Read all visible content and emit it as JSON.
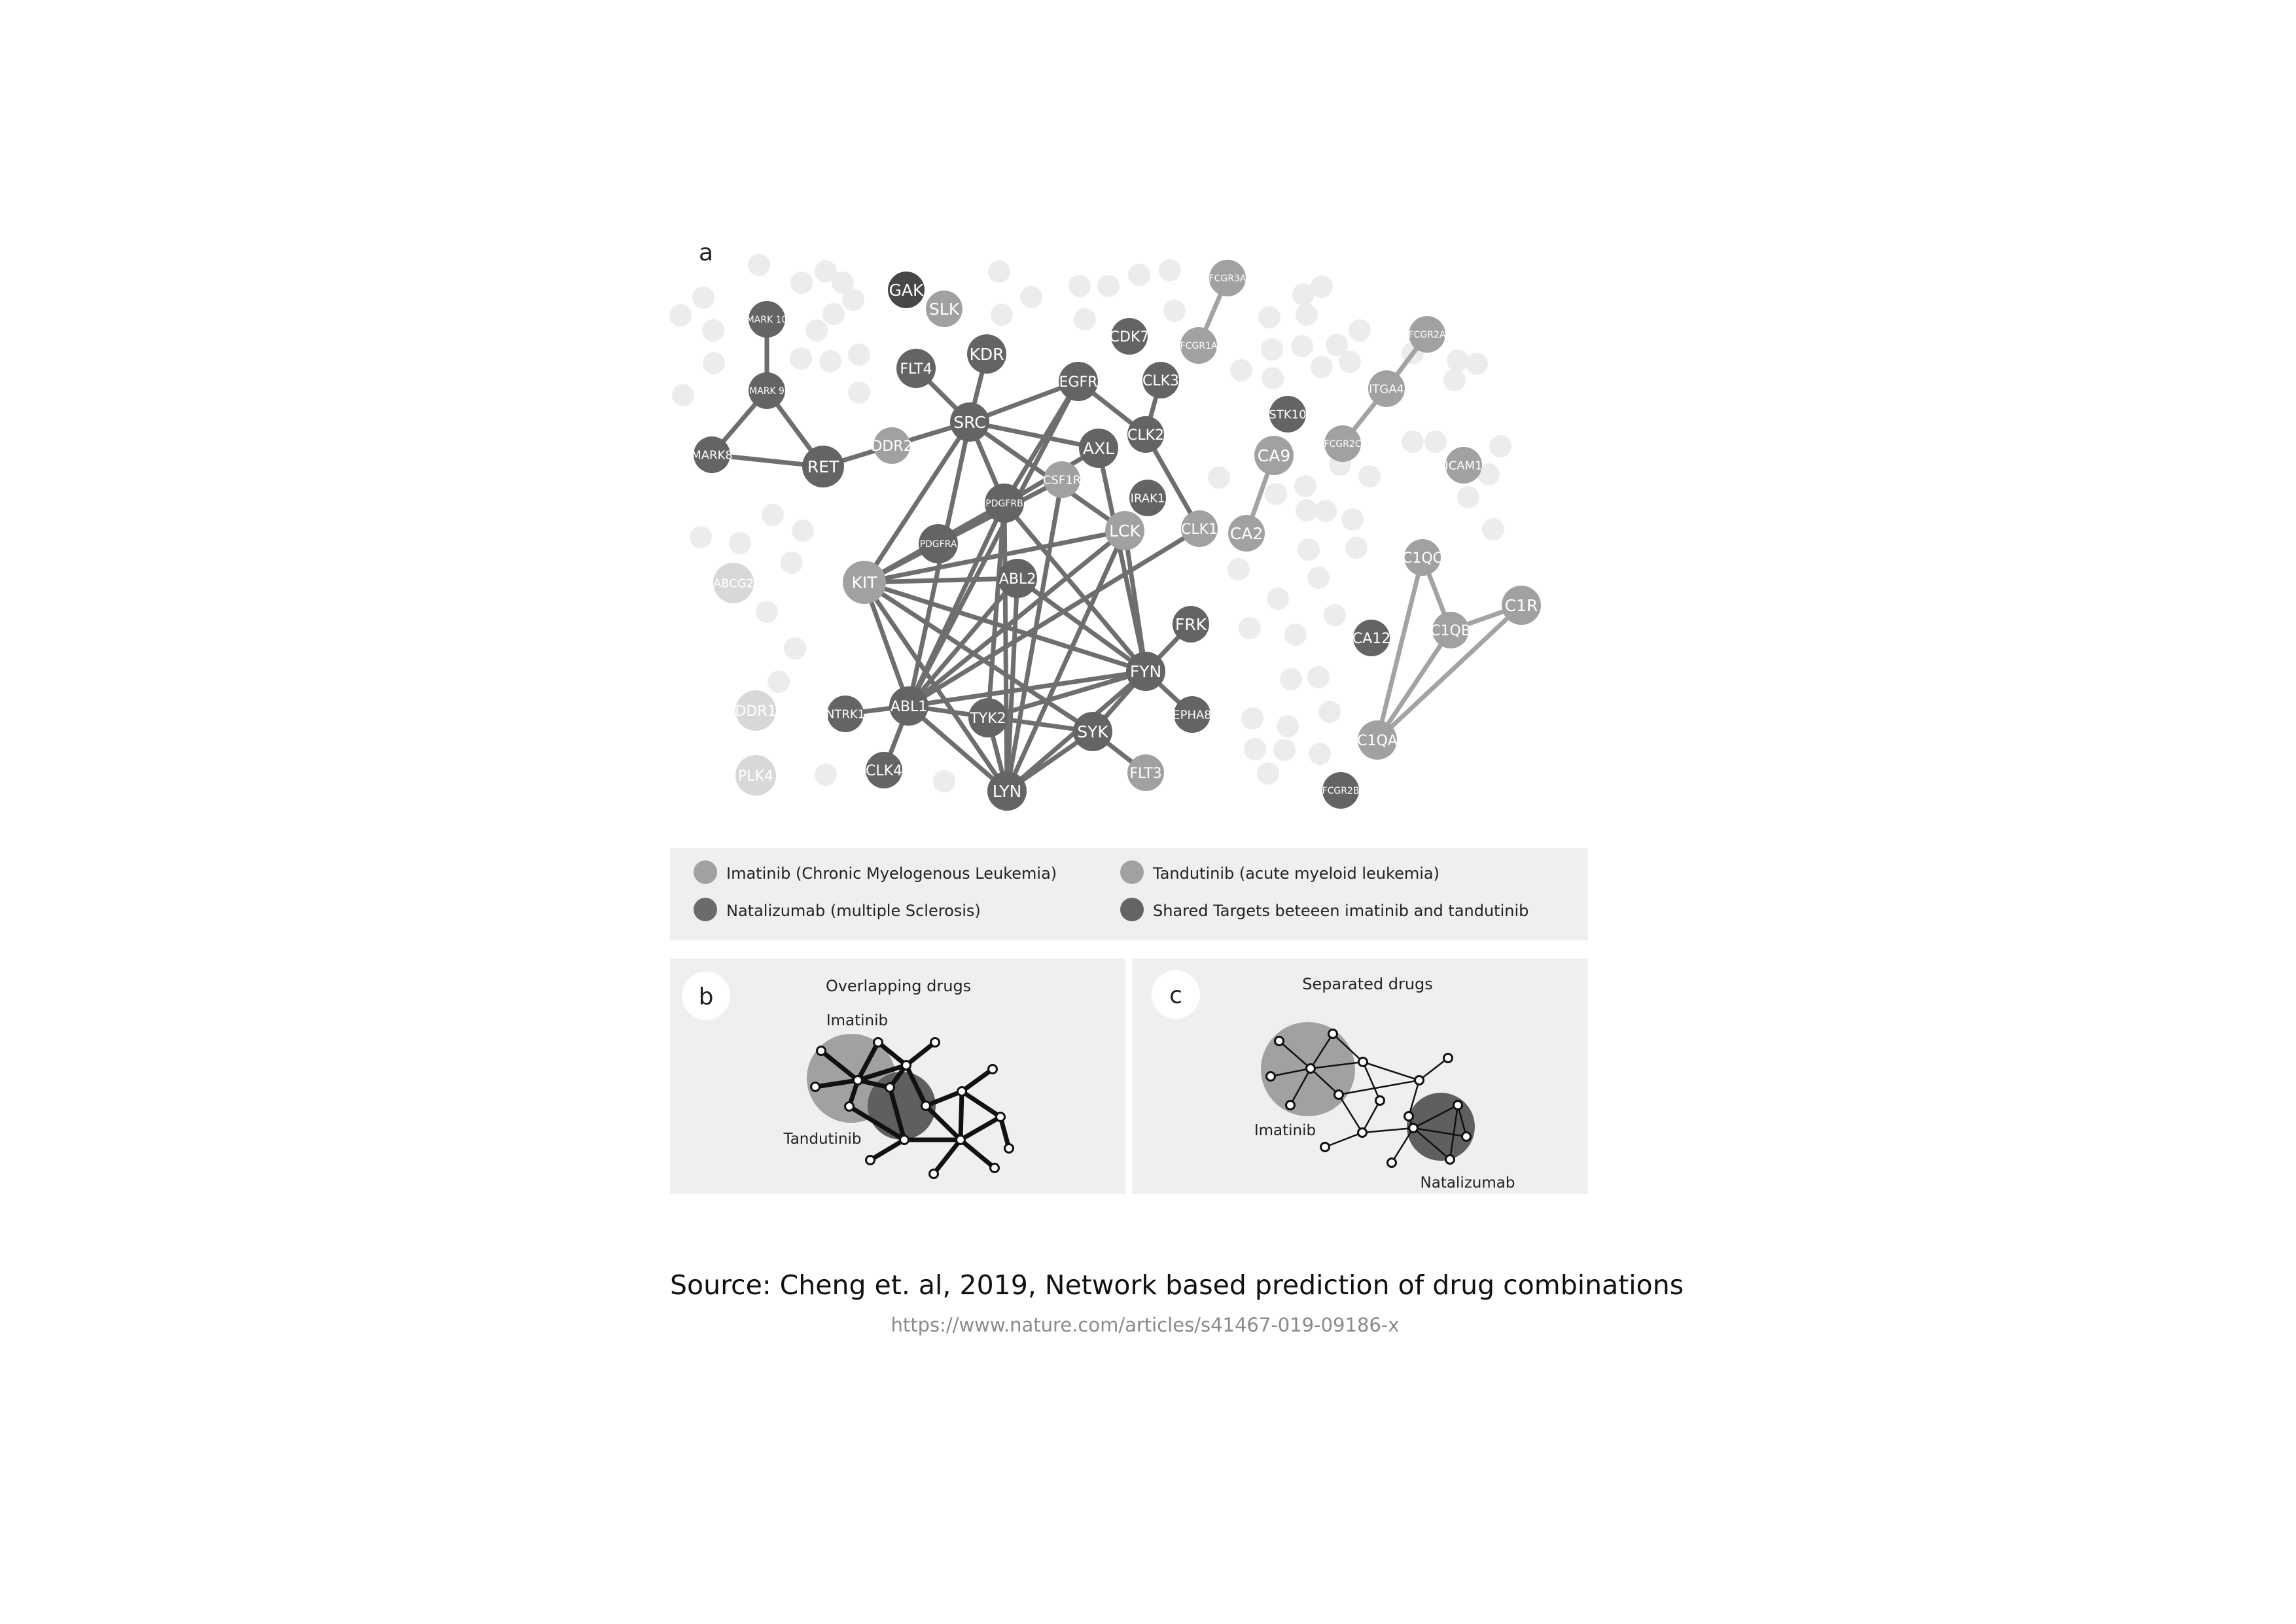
{
  "panel_a": {
    "letter": "a",
    "colors": {
      "imatinib": "#a1a1a1",
      "tandutinib": "#a1a1a1",
      "natalizumab": "#6b6b6b",
      "shared": "#646464",
      "background_node": "#ececec",
      "unassigned_node": "#d8d8d8",
      "edge": "#6e6e6e",
      "edge_light": "#a3a3a3"
    },
    "nodes": [
      {
        "id": "GAK",
        "label": "GAK",
        "group": "dark"
      },
      {
        "id": "SLK",
        "label": "SLK",
        "group": "mid"
      },
      {
        "id": "MARK10",
        "label": "MARK 10",
        "group": "shared"
      },
      {
        "id": "MARK9",
        "label": "MARK 9",
        "group": "shared"
      },
      {
        "id": "MARK8",
        "label": "MARK8",
        "group": "shared"
      },
      {
        "id": "RET",
        "label": "RET",
        "group": "shared"
      },
      {
        "id": "DDR2",
        "label": "DDR2",
        "group": "mid"
      },
      {
        "id": "FLT4",
        "label": "FLT4",
        "group": "shared"
      },
      {
        "id": "KDR",
        "label": "KDR",
        "group": "shared"
      },
      {
        "id": "SRC",
        "label": "SRC",
        "group": "shared"
      },
      {
        "id": "EGFR",
        "label": "EGFR",
        "group": "shared"
      },
      {
        "id": "CDK7",
        "label": "CDK7",
        "group": "shared"
      },
      {
        "id": "CLK3",
        "label": "CLK3",
        "group": "shared"
      },
      {
        "id": "CLK2",
        "label": "CLK2",
        "group": "shared"
      },
      {
        "id": "AXL",
        "label": "AXL",
        "group": "shared"
      },
      {
        "id": "CSF1R",
        "label": "CSF1R",
        "group": "mid"
      },
      {
        "id": "IRAK1",
        "label": "IRAK1",
        "group": "shared"
      },
      {
        "id": "PDGFRB",
        "label": "PDGFRB",
        "group": "shared"
      },
      {
        "id": "PDGFRA",
        "label": "PDGFRA",
        "group": "shared"
      },
      {
        "id": "LCK",
        "label": "LCK",
        "group": "mid"
      },
      {
        "id": "CLK1",
        "label": "CLK1",
        "group": "mid"
      },
      {
        "id": "KIT",
        "label": "KIT",
        "group": "mid"
      },
      {
        "id": "ABL2",
        "label": "ABL2",
        "group": "shared"
      },
      {
        "id": "FRK",
        "label": "FRK",
        "group": "shared"
      },
      {
        "id": "FYN",
        "label": "FYN",
        "group": "shared"
      },
      {
        "id": "EPHA8",
        "label": "EPHA8",
        "group": "shared"
      },
      {
        "id": "NTRK1",
        "label": "NTRK1",
        "group": "shared"
      },
      {
        "id": "ABL1",
        "label": "ABL1",
        "group": "shared"
      },
      {
        "id": "TYK2",
        "label": "TYK2",
        "group": "shared"
      },
      {
        "id": "SYK",
        "label": "SYK",
        "group": "shared"
      },
      {
        "id": "CLK4",
        "label": "CLK4",
        "group": "shared"
      },
      {
        "id": "LYN",
        "label": "LYN",
        "group": "shared"
      },
      {
        "id": "FLT3",
        "label": "FLT3",
        "group": "mid"
      },
      {
        "id": "ABCG2",
        "label": "ABCG2",
        "group": "light"
      },
      {
        "id": "DDR1",
        "label": "DDR1",
        "group": "light"
      },
      {
        "id": "PLK4",
        "label": "PLK4",
        "group": "light"
      },
      {
        "id": "FCGR3A",
        "label": "FCGR3A",
        "group": "mid"
      },
      {
        "id": "FCGR1A",
        "label": "FCGR1A",
        "group": "mid"
      },
      {
        "id": "STK10",
        "label": "STK10",
        "group": "shared"
      },
      {
        "id": "CA9",
        "label": "CA9",
        "group": "mid"
      },
      {
        "id": "CA2",
        "label": "CA2",
        "group": "mid"
      },
      {
        "id": "FCGR2A",
        "label": "FCGR2A",
        "group": "mid"
      },
      {
        "id": "ITGA4",
        "label": "ITGA4",
        "group": "mid"
      },
      {
        "id": "FCGR2C",
        "label": "FCGR2C",
        "group": "mid"
      },
      {
        "id": "ICAM1",
        "label": "ICAM1",
        "group": "mid"
      },
      {
        "id": "C1QC",
        "label": "C1QC",
        "group": "mid"
      },
      {
        "id": "C1QB",
        "label": "C1QB",
        "group": "mid"
      },
      {
        "id": "C1R",
        "label": "C1R",
        "group": "mid"
      },
      {
        "id": "CA12",
        "label": "CA12",
        "group": "shared"
      },
      {
        "id": "C1QA",
        "label": "C1QA",
        "group": "mid"
      },
      {
        "id": "FCGR2B",
        "label": "FCGR2B",
        "group": "shared"
      }
    ],
    "edges": [
      [
        "MARK10",
        "MARK9"
      ],
      [
        "MARK9",
        "MARK8"
      ],
      [
        "MARK9",
        "RET"
      ],
      [
        "MARK8",
        "RET"
      ],
      [
        "RET",
        "DDR2"
      ],
      [
        "DDR2",
        "SRC"
      ],
      [
        "FLT4",
        "SRC"
      ],
      [
        "KDR",
        "SRC"
      ],
      [
        "SRC",
        "EGFR"
      ],
      [
        "SRC",
        "AXL"
      ],
      [
        "SRC",
        "LCK"
      ],
      [
        "SRC",
        "KIT"
      ],
      [
        "SRC",
        "ABL1"
      ],
      [
        "SRC",
        "PDGFRB"
      ],
      [
        "EGFR",
        "PDGFRB"
      ],
      [
        "EGFR",
        "ABL1"
      ],
      [
        "EGFR",
        "CLK2"
      ],
      [
        "CLK3",
        "CLK2"
      ],
      [
        "CLK2",
        "CLK1"
      ],
      [
        "AXL",
        "FYN"
      ],
      [
        "AXL",
        "PDGFRA"
      ],
      [
        "CSF1R",
        "LYN"
      ],
      [
        "CSF1R",
        "KIT"
      ],
      [
        "PDGFRB",
        "KIT"
      ],
      [
        "PDGFRB",
        "ABL1"
      ],
      [
        "PDGFRB",
        "LYN"
      ],
      [
        "PDGFRB",
        "FYN"
      ],
      [
        "PDGFRB",
        "TYK2"
      ],
      [
        "PDGFRA",
        "KIT"
      ],
      [
        "LCK",
        "KIT"
      ],
      [
        "LCK",
        "ABL1"
      ],
      [
        "LCK",
        "LYN"
      ],
      [
        "LCK",
        "FYN"
      ],
      [
        "CLK1",
        "ABL1"
      ],
      [
        "KIT",
        "ABL2"
      ],
      [
        "KIT",
        "ABL1"
      ],
      [
        "KIT",
        "LYN"
      ],
      [
        "KIT",
        "FYN"
      ],
      [
        "KIT",
        "SYK"
      ],
      [
        "ABL2",
        "ABL1"
      ],
      [
        "ABL2",
        "FYN"
      ],
      [
        "ABL2",
        "LYN"
      ],
      [
        "FRK",
        "FYN"
      ],
      [
        "FYN",
        "EPHA8"
      ],
      [
        "FYN",
        "ABL1"
      ],
      [
        "FYN",
        "LYN"
      ],
      [
        "FYN",
        "TYK2"
      ],
      [
        "FYN",
        "SYK"
      ],
      [
        "NTRK1",
        "ABL1"
      ],
      [
        "ABL1",
        "CLK4"
      ],
      [
        "ABL1",
        "LYN"
      ],
      [
        "ABL1",
        "SYK"
      ],
      [
        "TYK2",
        "LYN"
      ],
      [
        "SYK",
        "LYN"
      ],
      [
        "SYK",
        "FLT3"
      ],
      [
        "FCGR3A",
        "FCGR1A"
      ],
      [
        "CA9",
        "CA2"
      ],
      [
        "FCGR2A",
        "ITGA4"
      ],
      [
        "ITGA4",
        "FCGR2C"
      ],
      [
        "C1QC",
        "C1QB"
      ],
      [
        "C1QC",
        "C1QA"
      ],
      [
        "C1QB",
        "C1R"
      ],
      [
        "C1QB",
        "C1QA"
      ],
      [
        "C1R",
        "C1QA"
      ]
    ]
  },
  "legend": {
    "imatinib": "Imatinib (Chronic Myelogenous Leukemia)",
    "natalizumab": "Natalizumab (multiple Sclerosis)",
    "tandutinib": "Tandutinib (acute myeloid leukemia)",
    "shared": "Shared Targets beteeen imatinib and tandutinib"
  },
  "panel_b": {
    "letter": "b",
    "title": "Overlapping drugs",
    "label_top": "Imatinib",
    "label_bottom": "Tandutinib"
  },
  "panel_c": {
    "letter": "c",
    "title": "Separated drugs",
    "label_left": "Imatinib",
    "label_right": "Natalizumab"
  },
  "source": {
    "title": "Source: Cheng et. al, 2019, Network based prediction of drug combinations",
    "url": "https://www.nature.com/articles/s41467-019-09186-x"
  }
}
